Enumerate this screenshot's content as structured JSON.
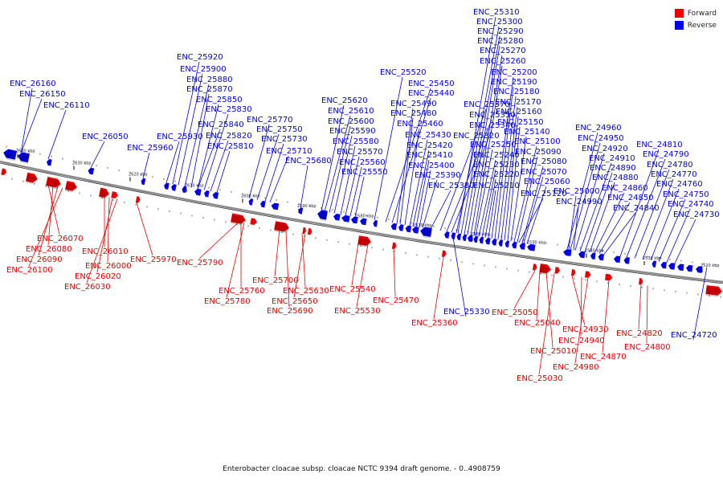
{
  "legend": {
    "forward_label": "Forward",
    "reverse_label": "Reverse",
    "forward_color": "#ee0000",
    "reverse_color": "#0000ee"
  },
  "caption": "Enterobacter cloacae subsp. cloacae NCTC 9394 draft genome. - 0..4908759",
  "scale_ticks": [
    "2640 kbp",
    "2630 kbp",
    "2620 kbp",
    "2610 kbp",
    "2600 kbp",
    "2590 kbp",
    "2580 kbp",
    "2570 kbp",
    "2560 kbp",
    "2550 kbp",
    "2540 kbp",
    "2530 kbp",
    "2520 kbp"
  ],
  "reverse_genes": [
    "ENC_26160",
    "ENC_26150",
    "ENC_26110",
    "ENC_26050",
    "ENC_25960",
    "ENC_25930",
    "ENC_25920",
    "ENC_25900",
    "ENC_25880",
    "ENC_25870",
    "ENC_25850",
    "ENC_25830",
    "ENC_25840",
    "ENC_25820",
    "ENC_25810",
    "ENC_25770",
    "ENC_25750",
    "ENC_25730",
    "ENC_25710",
    "ENC_25680",
    "ENC_25620",
    "ENC_25610",
    "ENC_25600",
    "ENC_25590",
    "ENC_25580",
    "ENC_25570",
    "ENC_25560",
    "ENC_25550",
    "ENC_25520",
    "ENC_25450",
    "ENC_25440",
    "ENC_25490",
    "ENC_25480",
    "ENC_25460",
    "ENC_25430",
    "ENC_25420",
    "ENC_25410",
    "ENC_25400",
    "ENC_25390",
    "ENC_25380",
    "ENC_25370",
    "ENC_25350",
    "ENC_25340",
    "ENC_25320",
    "ENC_25310",
    "ENC_25300",
    "ENC_25290",
    "ENC_25280",
    "ENC_25270",
    "ENC_25260",
    "ENC_25250",
    "ENC_25240",
    "ENC_25230",
    "ENC_25220",
    "ENC_25210",
    "ENC_25200",
    "ENC_25190",
    "ENC_25180",
    "ENC_25170",
    "ENC_25160",
    "ENC_25150",
    "ENC_25140",
    "ENC_25120",
    "ENC_25100",
    "ENC_25090",
    "ENC_25080",
    "ENC_25070",
    "ENC_25060",
    "ENC_24960",
    "ENC_24950",
    "ENC_24920",
    "ENC_24910",
    "ENC_24890",
    "ENC_24880",
    "ENC_24860",
    "ENC_24850",
    "ENC_24840",
    "ENC_25000",
    "ENC_24990",
    "ENC_24810",
    "ENC_24790",
    "ENC_24780",
    "ENC_24770",
    "ENC_24760",
    "ENC_24750",
    "ENC_24740",
    "ENC_24730",
    "ENC_25330",
    "ENC_24720"
  ],
  "forward_genes": [
    "ENC_26070",
    "ENC_26080",
    "ENC_26090",
    "ENC_26100",
    "ENC_26010",
    "ENC_26000",
    "ENC_26020",
    "ENC_26030",
    "ENC_25970",
    "ENC_25790",
    "ENC_25760",
    "ENC_25780",
    "ENC_25700",
    "ENC_25630",
    "ENC_25650",
    "ENC_25690",
    "ENC_25540",
    "ENC_25530",
    "ENC_25470",
    "ENC_25360",
    "ENC_25050",
    "ENC_25040",
    "ENC_25010",
    "ENC_25030",
    "ENC_24930",
    "ENC_24940",
    "ENC_24980",
    "ENC_24870",
    "ENC_24820",
    "ENC_24800"
  ]
}
